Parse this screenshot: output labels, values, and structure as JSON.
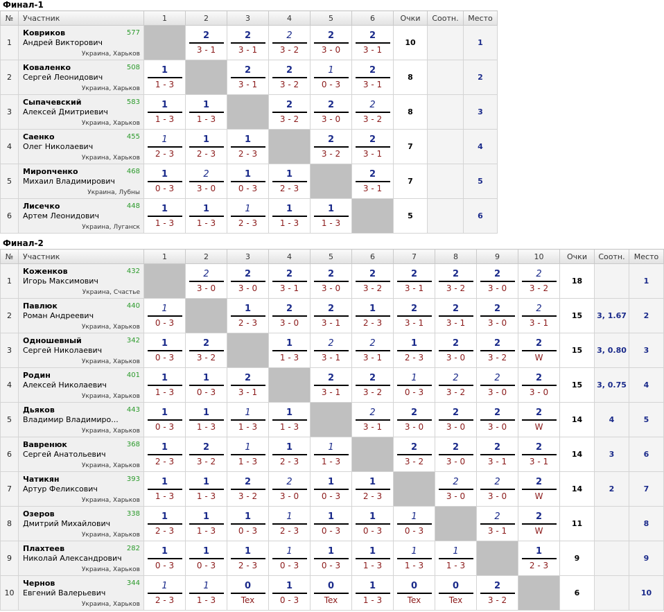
{
  "final1": {
    "title": "Финал-1",
    "headers": {
      "no": "№",
      "player": "Участник",
      "cols": [
        "1",
        "2",
        "3",
        "4",
        "5",
        "6"
      ],
      "points": "Очки",
      "ratio": "Соотн.",
      "place": "Место"
    },
    "rows": [
      {
        "n": "1",
        "last": "Ковриков",
        "first": "Андрей Викторович",
        "rating": "577",
        "city": "Украина, Харьков",
        "results": [
          null,
          {
            "p": "2",
            "s": "3 - 1",
            "w": true
          },
          {
            "p": "2",
            "s": "3 - 1",
            "w": true
          },
          {
            "p": "2",
            "s": "3 - 2",
            "w": false
          },
          {
            "p": "2",
            "s": "3 - 0",
            "w": true
          },
          {
            "p": "2",
            "s": "3 - 1",
            "w": true
          }
        ],
        "points": "10",
        "ratio": "",
        "place": "1"
      },
      {
        "n": "2",
        "last": "Коваленко",
        "first": "Сергей Леонидович",
        "rating": "508",
        "city": "Украина, Харьков",
        "results": [
          {
            "p": "1",
            "s": "1 - 3",
            "w": true
          },
          null,
          {
            "p": "2",
            "s": "3 - 1",
            "w": true
          },
          {
            "p": "2",
            "s": "3 - 2",
            "w": true
          },
          {
            "p": "1",
            "s": "0 - 3",
            "w": false
          },
          {
            "p": "2",
            "s": "3 - 1",
            "w": true
          }
        ],
        "points": "8",
        "ratio": "",
        "place": "2"
      },
      {
        "n": "3",
        "last": "Сыпачевский",
        "first": "Алексей Дмитриевич",
        "rating": "583",
        "city": "Украина, Харьков",
        "results": [
          {
            "p": "1",
            "s": "1 - 3",
            "w": true
          },
          {
            "p": "1",
            "s": "1 - 3",
            "w": true
          },
          null,
          {
            "p": "2",
            "s": "3 - 2",
            "w": true
          },
          {
            "p": "2",
            "s": "3 - 0",
            "w": true
          },
          {
            "p": "2",
            "s": "3 - 2",
            "w": false
          }
        ],
        "points": "8",
        "ratio": "",
        "place": "3"
      },
      {
        "n": "4",
        "last": "Саенко",
        "first": "Олег Николаевич",
        "rating": "455",
        "city": "Украина, Харьков",
        "results": [
          {
            "p": "1",
            "s": "2 - 3",
            "w": false
          },
          {
            "p": "1",
            "s": "2 - 3",
            "w": true
          },
          {
            "p": "1",
            "s": "2 - 3",
            "w": true
          },
          null,
          {
            "p": "2",
            "s": "3 - 2",
            "w": true
          },
          {
            "p": "2",
            "s": "3 - 1",
            "w": true
          }
        ],
        "points": "7",
        "ratio": "",
        "place": "4"
      },
      {
        "n": "5",
        "last": "Мирonченко",
        "first": "Михаил Владимирович",
        "rating": "468",
        "city": "Украина, Лубны",
        "results": [
          {
            "p": "1",
            "s": "0 - 3",
            "w": true
          },
          {
            "p": "2",
            "s": "3 - 0",
            "w": false
          },
          {
            "p": "1",
            "s": "0 - 3",
            "w": true
          },
          {
            "p": "1",
            "s": "2 - 3",
            "w": true
          },
          null,
          {
            "p": "2",
            "s": "3 - 1",
            "w": true
          }
        ],
        "points": "7",
        "ratio": "",
        "place": "5"
      },
      {
        "n": "6",
        "last": "Лисечко",
        "first": "Артем Леонидович",
        "rating": "448",
        "city": "Украина, Луганск",
        "results": [
          {
            "p": "1",
            "s": "1 - 3",
            "w": true
          },
          {
            "p": "1",
            "s": "1 - 3",
            "w": true
          },
          {
            "p": "1",
            "s": "2 - 3",
            "w": false
          },
          {
            "p": "1",
            "s": "1 - 3",
            "w": true
          },
          {
            "p": "1",
            "s": "1 - 3",
            "w": true
          },
          null
        ],
        "points": "5",
        "ratio": "",
        "place": "6"
      }
    ]
  },
  "final2": {
    "title": "Финал-2",
    "headers": {
      "no": "№",
      "player": "Участник",
      "cols": [
        "1",
        "2",
        "3",
        "4",
        "5",
        "6",
        "7",
        "8",
        "9",
        "10"
      ],
      "points": "Очки",
      "ratio": "Соотн.",
      "place": "Место"
    },
    "rows": [
      {
        "n": "1",
        "last": "Коженков",
        "first": "Игорь Максимович",
        "rating": "432",
        "city": "Украина, Счастье",
        "results": [
          null,
          {
            "p": "2",
            "s": "3 - 0",
            "w": false
          },
          {
            "p": "2",
            "s": "3 - 0",
            "w": true
          },
          {
            "p": "2",
            "s": "3 - 1",
            "w": true
          },
          {
            "p": "2",
            "s": "3 - 0",
            "w": true
          },
          {
            "p": "2",
            "s": "3 - 2",
            "w": true
          },
          {
            "p": "2",
            "s": "3 - 1",
            "w": true
          },
          {
            "p": "2",
            "s": "3 - 2",
            "w": true
          },
          {
            "p": "2",
            "s": "3 - 0",
            "w": true
          },
          {
            "p": "2",
            "s": "3 - 2",
            "w": false
          }
        ],
        "points": "18",
        "ratio": "",
        "place": "1"
      },
      {
        "n": "2",
        "last": "Павлюк",
        "first": "Роман Андреевич",
        "rating": "440",
        "city": "Украина, Харьков",
        "results": [
          {
            "p": "1",
            "s": "0 - 3",
            "w": false
          },
          null,
          {
            "p": "1",
            "s": "2 - 3",
            "w": true
          },
          {
            "p": "2",
            "s": "3 - 0",
            "w": true
          },
          {
            "p": "2",
            "s": "3 - 1",
            "w": true
          },
          {
            "p": "1",
            "s": "2 - 3",
            "w": true
          },
          {
            "p": "2",
            "s": "3 - 1",
            "w": true
          },
          {
            "p": "2",
            "s": "3 - 1",
            "w": true
          },
          {
            "p": "2",
            "s": "3 - 0",
            "w": true
          },
          {
            "p": "2",
            "s": "3 - 1",
            "w": false
          }
        ],
        "points": "15",
        "ratio": "3, 1.67",
        "place": "2"
      },
      {
        "n": "3",
        "last": "Одношевный",
        "first": "Сергей Николаевич",
        "rating": "342",
        "city": "Украина, Харьков",
        "results": [
          {
            "p": "1",
            "s": "0 - 3",
            "w": true
          },
          {
            "p": "2",
            "s": "3 - 2",
            "w": true
          },
          null,
          {
            "p": "1",
            "s": "1 - 3",
            "w": true
          },
          {
            "p": "2",
            "s": "3 - 1",
            "w": false
          },
          {
            "p": "2",
            "s": "3 - 1",
            "w": false
          },
          {
            "p": "1",
            "s": "2 - 3",
            "w": true
          },
          {
            "p": "2",
            "s": "3 - 0",
            "w": true
          },
          {
            "p": "2",
            "s": "3 - 2",
            "w": true
          },
          {
            "p": "2",
            "s": "W",
            "w": true
          }
        ],
        "points": "15",
        "ratio": "3, 0.80",
        "place": "3"
      },
      {
        "n": "4",
        "last": "Родин",
        "first": "Алексей Николаевич",
        "rating": "401",
        "city": "Украина, Харьков",
        "results": [
          {
            "p": "1",
            "s": "1 - 3",
            "w": true
          },
          {
            "p": "1",
            "s": "0 - 3",
            "w": true
          },
          {
            "p": "2",
            "s": "3 - 1",
            "w": true
          },
          null,
          {
            "p": "2",
            "s": "3 - 1",
            "w": true
          },
          {
            "p": "2",
            "s": "3 - 2",
            "w": true
          },
          {
            "p": "1",
            "s": "0 - 3",
            "w": false
          },
          {
            "p": "2",
            "s": "3 - 2",
            "w": false
          },
          {
            "p": "2",
            "s": "3 - 0",
            "w": false
          },
          {
            "p": "2",
            "s": "3 - 0",
            "w": true
          }
        ],
        "points": "15",
        "ratio": "3, 0.75",
        "place": "4"
      },
      {
        "n": "5",
        "last": "Дьяков",
        "first": "Владимир Владимиро...",
        "rating": "443",
        "city": "Украина, Харьков",
        "results": [
          {
            "p": "1",
            "s": "0 - 3",
            "w": true
          },
          {
            "p": "1",
            "s": "1 - 3",
            "w": true
          },
          {
            "p": "1",
            "s": "1 - 3",
            "w": false
          },
          {
            "p": "1",
            "s": "1 - 3",
            "w": true
          },
          null,
          {
            "p": "2",
            "s": "3 - 1",
            "w": false
          },
          {
            "p": "2",
            "s": "3 - 0",
            "w": true
          },
          {
            "p": "2",
            "s": "3 - 0",
            "w": true
          },
          {
            "p": "2",
            "s": "3 - 0",
            "w": true
          },
          {
            "p": "2",
            "s": "W",
            "w": true
          }
        ],
        "points": "14",
        "ratio": "4",
        "place": "5"
      },
      {
        "n": "6",
        "last": "Вавренюк",
        "first": "Сергей Анатольевич",
        "rating": "368",
        "city": "Украина, Харьков",
        "results": [
          {
            "p": "1",
            "s": "2 - 3",
            "w": true
          },
          {
            "p": "2",
            "s": "3 - 2",
            "w": true
          },
          {
            "p": "1",
            "s": "1 - 3",
            "w": false
          },
          {
            "p": "1",
            "s": "2 - 3",
            "w": true
          },
          {
            "p": "1",
            "s": "1 - 3",
            "w": false
          },
          null,
          {
            "p": "2",
            "s": "3 - 2",
            "w": true
          },
          {
            "p": "2",
            "s": "3 - 0",
            "w": true
          },
          {
            "p": "2",
            "s": "3 - 1",
            "w": true
          },
          {
            "p": "2",
            "s": "3 - 1",
            "w": true
          }
        ],
        "points": "14",
        "ratio": "3",
        "place": "6"
      },
      {
        "n": "7",
        "last": "Чатикян",
        "first": "Артур Феликсович",
        "rating": "393",
        "city": "Украина, Харьков",
        "results": [
          {
            "p": "1",
            "s": "1 - 3",
            "w": true
          },
          {
            "p": "1",
            "s": "1 - 3",
            "w": true
          },
          {
            "p": "2",
            "s": "3 - 2",
            "w": true
          },
          {
            "p": "2",
            "s": "3 - 0",
            "w": false
          },
          {
            "p": "1",
            "s": "0 - 3",
            "w": true
          },
          {
            "p": "1",
            "s": "2 - 3",
            "w": true
          },
          null,
          {
            "p": "2",
            "s": "3 - 0",
            "w": false
          },
          {
            "p": "2",
            "s": "3 - 0",
            "w": false
          },
          {
            "p": "2",
            "s": "W",
            "w": true
          }
        ],
        "points": "14",
        "ratio": "2",
        "place": "7"
      },
      {
        "n": "8",
        "last": "Озеров",
        "first": "Дмитрий Михайлович",
        "rating": "338",
        "city": "Украина, Харьков",
        "results": [
          {
            "p": "1",
            "s": "2 - 3",
            "w": true
          },
          {
            "p": "1",
            "s": "1 - 3",
            "w": true
          },
          {
            "p": "1",
            "s": "0 - 3",
            "w": true
          },
          {
            "p": "1",
            "s": "2 - 3",
            "w": false
          },
          {
            "p": "1",
            "s": "0 - 3",
            "w": true
          },
          {
            "p": "1",
            "s": "0 - 3",
            "w": true
          },
          {
            "p": "1",
            "s": "0 - 3",
            "w": false
          },
          null,
          {
            "p": "2",
            "s": "3 - 1",
            "w": false
          },
          {
            "p": "2",
            "s": "W",
            "w": true
          }
        ],
        "points": "11",
        "ratio": "",
        "place": "8"
      },
      {
        "n": "9",
        "last": "Плахтеев",
        "first": "Николай Александрович",
        "rating": "282",
        "city": "Украина, Харьков",
        "results": [
          {
            "p": "1",
            "s": "0 - 3",
            "w": true
          },
          {
            "p": "1",
            "s": "0 - 3",
            "w": true
          },
          {
            "p": "1",
            "s": "2 - 3",
            "w": true
          },
          {
            "p": "1",
            "s": "0 - 3",
            "w": false
          },
          {
            "p": "1",
            "s": "0 - 3",
            "w": true
          },
          {
            "p": "1",
            "s": "1 - 3",
            "w": true
          },
          {
            "p": "1",
            "s": "1 - 3",
            "w": false
          },
          {
            "p": "1",
            "s": "1 - 3",
            "w": false
          },
          null,
          {
            "p": "1",
            "s": "2 - 3",
            "w": true
          }
        ],
        "points": "9",
        "ratio": "",
        "place": "9"
      },
      {
        "n": "10",
        "last": "Чернов",
        "first": "Евгений Валерьевич",
        "rating": "344",
        "city": "Украина, Харьков",
        "results": [
          {
            "p": "1",
            "s": "2 - 3",
            "w": false
          },
          {
            "p": "1",
            "s": "1 - 3",
            "w": false
          },
          {
            "p": "0",
            "s": "Tex",
            "w": true
          },
          {
            "p": "1",
            "s": "0 - 3",
            "w": true
          },
          {
            "p": "0",
            "s": "Tex",
            "w": true
          },
          {
            "p": "1",
            "s": "1 - 3",
            "w": true
          },
          {
            "p": "0",
            "s": "Tex",
            "w": true
          },
          {
            "p": "0",
            "s": "Tex",
            "w": true
          },
          {
            "p": "2",
            "s": "3 - 2",
            "w": true
          },
          null
        ],
        "points": "6",
        "ratio": "",
        "place": "10"
      }
    ]
  }
}
